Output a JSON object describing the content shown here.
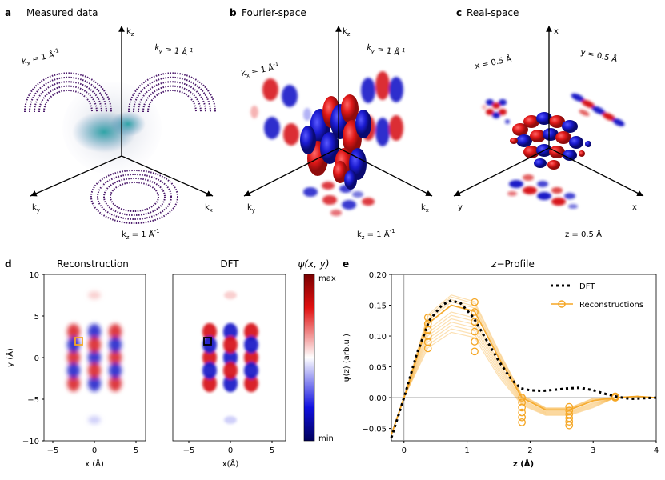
{
  "panels": {
    "a": {
      "letter": "a",
      "title": "Measured data",
      "axes": {
        "z": "k",
        "z_sub": "z",
        "y": "k",
        "y_sub": "y",
        "x": "k",
        "x_sub": "x"
      },
      "slices": {
        "kx": "k",
        "kx_sub": "x",
        "kx_val": " = 1 Å",
        "ky": "k",
        "ky_sub": "y",
        "ky_val": " = 1 Å",
        "kz": "k",
        "kz_sub": "z",
        "kz_val": " = 1 Å",
        "exp": "-1"
      }
    },
    "b": {
      "letter": "b",
      "title": "Fourier-space",
      "axes": {
        "z": "k",
        "z_sub": "z",
        "y": "k",
        "y_sub": "y",
        "x": "k",
        "x_sub": "x"
      },
      "slices": {
        "kx": "k",
        "kx_sub": "x",
        "kx_val": " = 1 Å",
        "ky": "k",
        "ky_sub": "y",
        "ky_val": " = 1 Å",
        "kz": "k",
        "kz_sub": "z",
        "kz_val": " = 1 Å",
        "exp": "-1"
      }
    },
    "c": {
      "letter": "c",
      "title": "Real-space",
      "axes": {
        "z": "x",
        "y": "y",
        "x": "x"
      },
      "slices": {
        "x": "x = 0.5 Å",
        "y": "y = 0.5 Å",
        "z": "z = 0.5 Å"
      }
    },
    "d": {
      "letter": "d",
      "title_left": "Reconstruction",
      "title_right": "DFT",
      "ylabel": "y (Å)",
      "xlabel_left": "x (Å)",
      "xlabel_right": "x(Å)",
      "yticks": [
        "10",
        "5",
        "0",
        "−5",
        "−10"
      ],
      "xticks": [
        "−5",
        "0",
        "5"
      ],
      "colorbar": {
        "label": "ψ(x, y)",
        "max": "max",
        "min": "min"
      }
    },
    "e": {
      "letter": "e",
      "title_pre": "z",
      "title_post": "−Profile",
      "ylabel": "ψ(z) (arb.u.)",
      "xlabel": "z (Å)",
      "yticks": [
        "0.20",
        "0.15",
        "0.10",
        "0.05",
        "0.00",
        "−0.05"
      ],
      "xticks": [
        "0",
        "1",
        "2",
        "3",
        "4"
      ],
      "legend": [
        "DFT",
        "Reconstructions"
      ]
    }
  },
  "colors": {
    "positive": "#d7191c",
    "negative": "#1a1ac8",
    "recon": "#f5a623",
    "dft": "#000000"
  },
  "chart_data": {
    "type": "line",
    "title": "z−Profile",
    "xlabel": "z (Å)",
    "ylabel": "ψ(z) (arb.u.)",
    "xlim": [
      -0.2,
      4.0
    ],
    "ylim": [
      -0.07,
      0.2
    ],
    "legend": "top-right",
    "series": [
      {
        "name": "DFT",
        "style": "dotted",
        "x": [
          -0.2,
          0.0,
          0.2,
          0.4,
          0.6,
          0.75,
          0.9,
          1.1,
          1.3,
          1.5,
          1.7,
          1.85,
          2.0,
          2.2,
          2.4,
          2.6,
          2.8,
          3.0,
          3.2,
          3.4,
          3.6,
          3.8,
          4.0
        ],
        "y": [
          -0.065,
          0.0,
          0.07,
          0.125,
          0.15,
          0.158,
          0.153,
          0.13,
          0.095,
          0.06,
          0.03,
          0.015,
          0.012,
          0.011,
          0.013,
          0.015,
          0.016,
          0.012,
          0.006,
          0.001,
          -0.002,
          -0.001,
          0.0
        ]
      },
      {
        "name": "Reconstructions",
        "x": [
          -0.2,
          0.0,
          0.38,
          0.75,
          1.12,
          1.5,
          1.87,
          2.25,
          2.62,
          3.0,
          3.35,
          3.7,
          4.0
        ],
        "y": [
          -0.06,
          0.0,
          0.12,
          0.15,
          0.14,
          0.065,
          0.0,
          -0.02,
          -0.02,
          -0.005,
          0.0,
          0.002,
          0.0
        ]
      }
    ],
    "markers": {
      "x": [
        0.38,
        1.12,
        1.87,
        2.62,
        3.35
      ],
      "y_min": [
        0.08,
        0.075,
        -0.04,
        -0.045,
        0.0
      ],
      "y_max": [
        0.13,
        0.155,
        0.0,
        -0.015,
        0.002
      ]
    }
  }
}
